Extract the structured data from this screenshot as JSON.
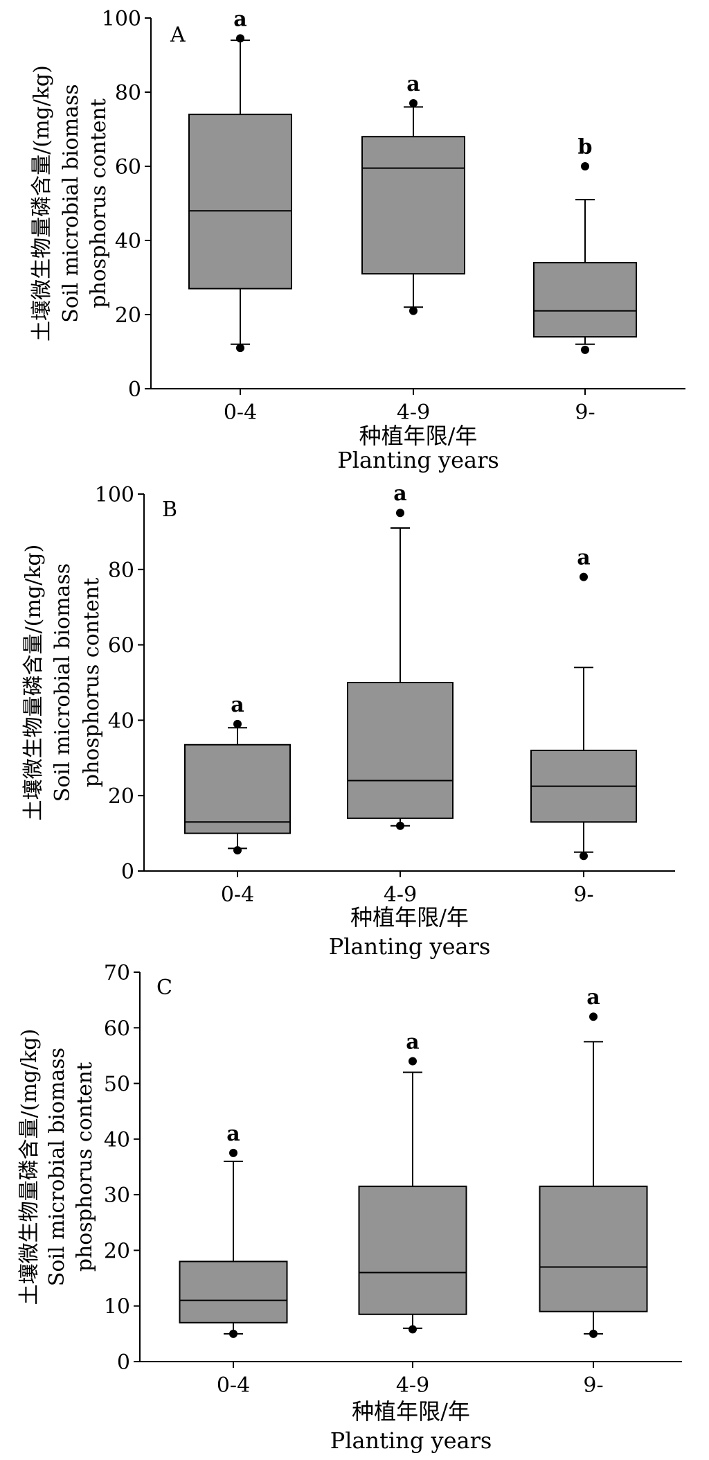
{
  "chart_data": [
    {
      "type": "boxplot",
      "panel_label": "A",
      "categories": [
        "0-4",
        "4-9",
        "9-"
      ],
      "yticks": [
        "0",
        "20",
        "40",
        "60",
        "80",
        "100"
      ],
      "ylim": [
        0,
        100
      ],
      "ylabel": [
        "土壤微生物量磷含量/(mg/kg)",
        "Soil microbial biomass",
        "phosphorus content"
      ],
      "xlabel": [
        "种植年限/年",
        "Planting years"
      ],
      "boxes": [
        {
          "category": "0-4",
          "whisker_low": 12,
          "q1": 27,
          "median": 48,
          "q3": 74,
          "whisker_high": 94,
          "outliers": [
            11,
            94.5
          ],
          "sig": "a"
        },
        {
          "category": "4-9",
          "whisker_low": 22,
          "q1": 31,
          "median": 59.5,
          "q3": 68,
          "whisker_high": 76,
          "outliers": [
            21,
            77
          ],
          "sig": "a"
        },
        {
          "category": "9-",
          "whisker_low": 12,
          "q1": 14,
          "median": 21,
          "q3": 34,
          "whisker_high": 51,
          "outliers": [
            10.5,
            60
          ],
          "sig": "b"
        }
      ]
    },
    {
      "type": "boxplot",
      "panel_label": "B",
      "categories": [
        "0-4",
        "4-9",
        "9-"
      ],
      "yticks": [
        "0",
        "20",
        "40",
        "60",
        "80",
        "100"
      ],
      "ylim": [
        0,
        100
      ],
      "ylabel": [
        "土壤微生物量磷含量/(mg/kg)",
        "Soil microbial biomass",
        "phosphorus content"
      ],
      "xlabel": [
        "种植年限/年",
        "Planting years"
      ],
      "boxes": [
        {
          "category": "0-4",
          "whisker_low": 6,
          "q1": 10,
          "median": 13,
          "q3": 33.5,
          "whisker_high": 38,
          "outliers": [
            5.5,
            39
          ],
          "sig": "a"
        },
        {
          "category": "4-9",
          "whisker_low": 12,
          "q1": 14,
          "median": 24,
          "q3": 50,
          "whisker_high": 91,
          "outliers": [
            12,
            95
          ],
          "sig": "a"
        },
        {
          "category": "9-",
          "whisker_low": 5,
          "q1": 13,
          "median": 22.5,
          "q3": 32,
          "whisker_high": 54,
          "outliers": [
            4,
            78
          ],
          "sig": "a"
        }
      ]
    },
    {
      "type": "boxplot",
      "panel_label": "C",
      "categories": [
        "0-4",
        "4-9",
        "9-"
      ],
      "yticks": [
        "0",
        "10",
        "20",
        "30",
        "40",
        "50",
        "60",
        "70"
      ],
      "ylim": [
        0,
        70
      ],
      "ylabel": [
        "土壤微生物量磷含量/(mg/kg)",
        "Soil microbial biomass",
        "phosphorus content"
      ],
      "xlabel": [
        "种植年限/年",
        "Planting years"
      ],
      "boxes": [
        {
          "category": "0-4",
          "whisker_low": 5,
          "q1": 7,
          "median": 11,
          "q3": 18,
          "whisker_high": 36,
          "outliers": [
            5,
            37.5
          ],
          "sig": "a"
        },
        {
          "category": "4-9",
          "whisker_low": 6,
          "q1": 8.5,
          "median": 16,
          "q3": 31.5,
          "whisker_high": 52,
          "outliers": [
            5.8,
            54
          ],
          "sig": "a"
        },
        {
          "category": "9-",
          "whisker_low": 5,
          "q1": 9,
          "median": 17,
          "q3": 31.5,
          "whisker_high": 57.5,
          "outliers": [
            5,
            62
          ],
          "sig": "a"
        }
      ]
    }
  ]
}
